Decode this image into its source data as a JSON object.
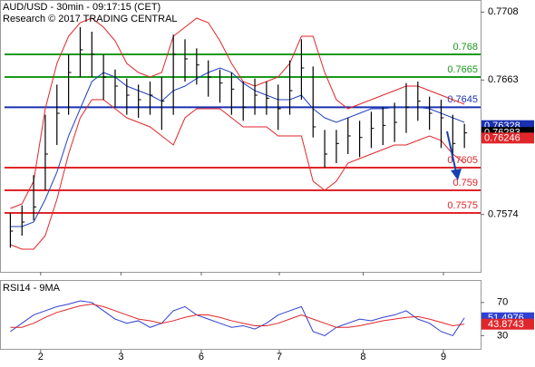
{
  "chart_data": [
    {
      "type": "hlc",
      "title": "AUD/USD - 30min - 09:17:15 (CET)",
      "subtitle": "Research © 2017 TRADING CENTRAL",
      "x": [
        0,
        1,
        2,
        3,
        4,
        5,
        6,
        7,
        8,
        9,
        10,
        11,
        12,
        13,
        14,
        15,
        16,
        17,
        18,
        19,
        20,
        21,
        22,
        23,
        24,
        25,
        26,
        27,
        28,
        29,
        30,
        31,
        32,
        33,
        34,
        35,
        36,
        37,
        38,
        39
      ],
      "xlim": [
        -0.5,
        40
      ],
      "high": [
        0.7575,
        0.758,
        0.76,
        0.764,
        0.766,
        0.768,
        0.7698,
        0.7695,
        0.768,
        0.767,
        0.7664,
        0.766,
        0.7662,
        0.7665,
        0.7693,
        0.769,
        0.7684,
        0.7676,
        0.767,
        0.7668,
        0.7662,
        0.7664,
        0.7662,
        0.766,
        0.7676,
        0.769,
        0.7672,
        0.763,
        0.763,
        0.7638,
        0.7636,
        0.7642,
        0.7645,
        0.7648,
        0.7661,
        0.7662,
        0.7652,
        0.765,
        0.764,
        0.7634
      ],
      "low": [
        0.7552,
        0.756,
        0.757,
        0.759,
        0.762,
        0.764,
        0.7665,
        0.7665,
        0.765,
        0.7645,
        0.764,
        0.7638,
        0.764,
        0.763,
        0.764,
        0.7662,
        0.766,
        0.7652,
        0.7648,
        0.764,
        0.7636,
        0.764,
        0.764,
        0.763,
        0.764,
        0.765,
        0.7625,
        0.7605,
        0.7608,
        0.7614,
        0.7612,
        0.7618,
        0.762,
        0.7622,
        0.7628,
        0.7636,
        0.763,
        0.7618,
        0.761,
        0.7618
      ],
      "close": [
        0.7563,
        0.7569,
        0.7579,
        0.7614,
        0.7641,
        0.7668,
        0.7683,
        0.768,
        0.7665,
        0.7659,
        0.7653,
        0.765,
        0.7653,
        0.7649,
        0.768,
        0.7677,
        0.7673,
        0.7665,
        0.7661,
        0.7657,
        0.7645,
        0.7653,
        0.7651,
        0.7644,
        0.7656,
        0.7671,
        0.7632,
        0.7614,
        0.7621,
        0.7626,
        0.7625,
        0.7631,
        0.7633,
        0.7635,
        0.7645,
        0.7649,
        0.7641,
        0.7638,
        0.7621,
        0.7628
      ],
      "color": "#000000",
      "bands": [
        {
          "color": "#e0262a",
          "values": [
            0.7578,
            0.7581,
            0.7596,
            0.7644,
            0.7674,
            0.7692,
            0.7701,
            0.7704,
            0.7698,
            0.7689,
            0.7674,
            0.7668,
            0.7665,
            0.7668,
            0.7692,
            0.7698,
            0.7704,
            0.7701,
            0.7689,
            0.7674,
            0.7662,
            0.7659,
            0.7662,
            0.7665,
            0.7674,
            0.7692,
            0.7692,
            0.7668,
            0.765,
            0.7644,
            0.7647,
            0.765,
            0.7653,
            0.7656,
            0.7659,
            0.7659,
            0.7656,
            0.7653,
            0.765,
            0.7647
          ]
        },
        {
          "color": "#e0262a",
          "values": [
            0.7554,
            0.7551,
            0.7551,
            0.756,
            0.7584,
            0.7614,
            0.7638,
            0.765,
            0.765,
            0.7644,
            0.7638,
            0.7635,
            0.7632,
            0.7626,
            0.762,
            0.7638,
            0.7644,
            0.7644,
            0.7644,
            0.7638,
            0.7632,
            0.7632,
            0.7632,
            0.7626,
            0.7626,
            0.7626,
            0.7596,
            0.759,
            0.7596,
            0.7608,
            0.7611,
            0.7614,
            0.7617,
            0.762,
            0.762,
            0.7623,
            0.7626,
            0.7623,
            0.7614,
            0.7608
          ]
        },
        {
          "color": "#2040c0",
          "values": [
            0.7566,
            0.7566,
            0.7569,
            0.7584,
            0.7602,
            0.7626,
            0.7644,
            0.7662,
            0.7668,
            0.7665,
            0.7659,
            0.7656,
            0.7653,
            0.7649,
            0.7656,
            0.7659,
            0.7664,
            0.7668,
            0.7671,
            0.7668,
            0.7661,
            0.7656,
            0.7653,
            0.765,
            0.765,
            0.7653,
            0.7644,
            0.7638,
            0.7635,
            0.7638,
            0.7641,
            0.7644,
            0.7644,
            0.7645,
            0.7645,
            0.7645,
            0.7644,
            0.7641,
            0.7638,
            0.7635
          ]
        }
      ],
      "levels": [
        {
          "value": 0.768,
          "color": "#1a9a1a"
        },
        {
          "value": 0.7665,
          "color": "#1a9a1a"
        },
        {
          "value": 0.7645,
          "color": "#1a30b0"
        },
        {
          "value": 0.7605,
          "color": "#e0262a"
        },
        {
          "value": 0.759,
          "color": "#e0262a"
        },
        {
          "value": 0.7575,
          "color": "#e0262a"
        }
      ],
      "price_tags": [
        {
          "value": 0.76328,
          "color": "#1a30b0"
        },
        {
          "value": 0.76283,
          "color": "#000000"
        },
        {
          "value": 0.76246,
          "color": "#e0262a"
        }
      ],
      "ylim": [
        0.7536,
        0.7716
      ],
      "yticks": [
        0.7574,
        0.7663,
        0.7708
      ]
    },
    {
      "type": "line",
      "title": "RSI14 - 9MA",
      "x": [
        0,
        1,
        2,
        3,
        4,
        5,
        6,
        7,
        8,
        9,
        10,
        11,
        12,
        13,
        14,
        15,
        16,
        17,
        18,
        19,
        20,
        21,
        22,
        23,
        24,
        25,
        26,
        27,
        28,
        29,
        30,
        31,
        32,
        33,
        34,
        35,
        36,
        37,
        38,
        39
      ],
      "xlim": [
        -0.5,
        40
      ],
      "xticks": [
        {
          "value": 2.6,
          "label": "2"
        },
        {
          "value": 9.5,
          "label": "3"
        },
        {
          "value": 16.4,
          "label": "6"
        },
        {
          "value": 23.1,
          "label": "7"
        },
        {
          "value": 30.3,
          "label": "8"
        },
        {
          "value": 37.2,
          "label": "9"
        }
      ],
      "series": [
        {
          "color": "#3040d0",
          "values": [
            35,
            45,
            55,
            60,
            65,
            68,
            72,
            70,
            60,
            50,
            45,
            48,
            40,
            45,
            60,
            65,
            55,
            50,
            45,
            40,
            42,
            38,
            45,
            55,
            60,
            65,
            35,
            30,
            40,
            45,
            50,
            48,
            52,
            55,
            60,
            50,
            45,
            35,
            30,
            51.4976
          ]
        },
        {
          "color": "#e0262a",
          "values": [
            40,
            40,
            45,
            52,
            58,
            62,
            66,
            68,
            65,
            60,
            55,
            50,
            48,
            45,
            48,
            52,
            55,
            55,
            52,
            48,
            45,
            42,
            42,
            45,
            50,
            55,
            50,
            45,
            40,
            40,
            42,
            45,
            48,
            50,
            52,
            53,
            50,
            46,
            42,
            43.8743
          ]
        }
      ],
      "ylim": [
        13,
        96
      ],
      "yticks": [
        30,
        70
      ]
    }
  ]
}
